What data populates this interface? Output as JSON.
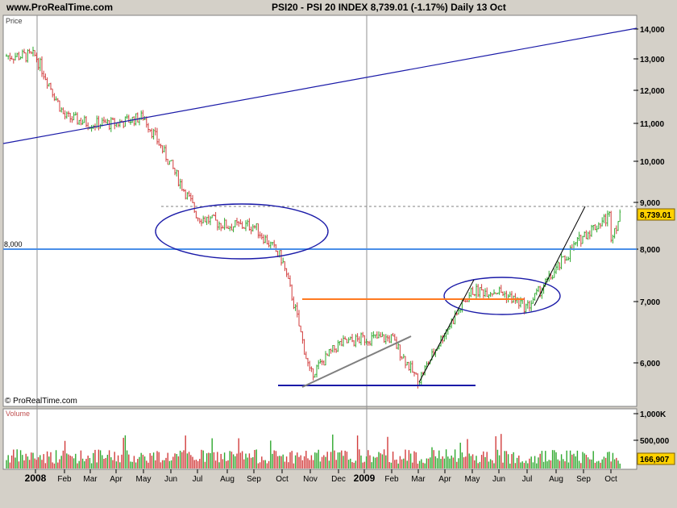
{
  "header": {
    "site": "www.ProRealTime.com",
    "title": "PSI20 - PSI 20 INDEX   8,739.01 (-1.17%)   Daily  13 Oct"
  },
  "price_panel": {
    "label": "Price",
    "copyright": "© ProRealTime.com",
    "line_label": "8,000",
    "last_price": "8,739.01",
    "y_ticks": [
      "14,000",
      "13,000",
      "12,000",
      "11,000",
      "10,000",
      "9,000",
      "8,000",
      "7,000",
      "6,000"
    ]
  },
  "volume_panel": {
    "label": "Volume",
    "y_ticks": [
      "1,000K",
      "500,000"
    ],
    "last_volume": "166,907"
  },
  "x_axis": {
    "labels": [
      "2008",
      "Feb",
      "Mar",
      "Apr",
      "May",
      "Jun",
      "Jul",
      "Aug",
      "Sep",
      "Oct",
      "Nov",
      "Dec",
      "2009",
      "Feb",
      "Mar",
      "Apr",
      "May",
      "Jun",
      "Jul",
      "Aug",
      "Sep",
      "Oct"
    ]
  },
  "colors": {
    "up": "#2ea82e",
    "down": "#d23c3c",
    "trend_blue": "#1a1aa8",
    "horizontal_line": "#4a8fe8",
    "orange_line": "#ff7a20",
    "gray_line": "#7f7f7f",
    "last_price_bg": "#ffd200"
  },
  "chart_data": {
    "type": "line",
    "title": "PSI20 - PSI 20 INDEX",
    "subtitle": "8,739.01 (-1.17%)  Daily  13 Oct",
    "xlabel": "",
    "ylabel": "Price",
    "ylim": [
      5500,
      14400
    ],
    "grid": true,
    "x": [
      "2008-01",
      "2008-02",
      "2008-03",
      "2008-04",
      "2008-05",
      "2008-06",
      "2008-07",
      "2008-08",
      "2008-09",
      "2008-10",
      "2008-11",
      "2008-12",
      "2009-01",
      "2009-02",
      "2009-03",
      "2009-04",
      "2009-05",
      "2009-06",
      "2009-07",
      "2009-08",
      "2009-09",
      "2009-10"
    ],
    "series": [
      {
        "values": [
          13100,
          11200,
          11000,
          11000,
          11200,
          9900,
          8700,
          8500,
          8500,
          7800,
          5800,
          6300,
          6400,
          6400,
          5700,
          6500,
          7200,
          7200,
          6900,
          7600,
          8300,
          8739
        ]
      }
    ],
    "horizontal_lines": [
      8000,
      7050
    ],
    "annotations": [
      "8,000"
    ],
    "volume": {
      "ylabel": "Volume",
      "y_ticks": [
        "1,000K",
        "500,000"
      ],
      "last": 166907
    }
  }
}
